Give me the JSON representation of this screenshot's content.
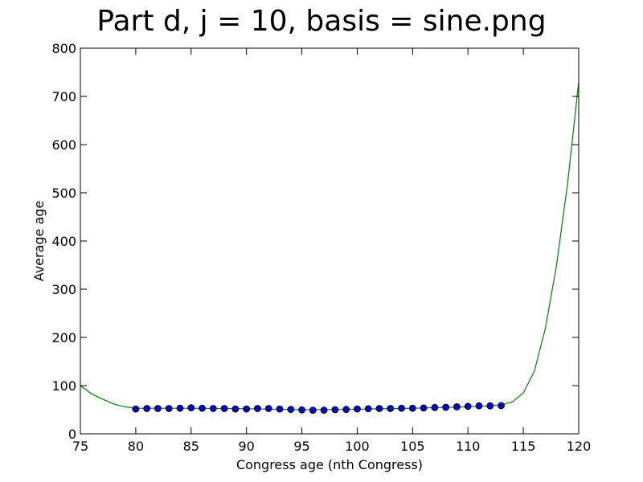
{
  "chart_data": {
    "type": "scatter",
    "title": "Part d, j = 10, basis = sine.png",
    "xlabel": "Congress age (nth Congress)",
    "ylabel": "Average age",
    "xlim": [
      75,
      120
    ],
    "ylim": [
      0,
      800
    ],
    "xticks": [
      75,
      80,
      85,
      90,
      95,
      100,
      105,
      110,
      115,
      120
    ],
    "yticks": [
      0,
      100,
      200,
      300,
      400,
      500,
      600,
      700,
      800
    ],
    "grid": false,
    "colors": {
      "points": "#0000cc",
      "fit_line": "#008000"
    },
    "series": [
      {
        "kind": "points",
        "x": [
          80,
          81,
          82,
          83,
          84,
          85,
          86,
          87,
          88,
          89,
          90,
          91,
          92,
          93,
          94,
          95,
          96,
          97,
          98,
          99,
          100,
          101,
          102,
          103,
          104,
          105,
          106,
          107,
          108,
          109,
          110,
          111,
          112,
          113
        ],
        "y": [
          51.5,
          52.5,
          52.5,
          52.5,
          53,
          54,
          53,
          52.5,
          52.5,
          51.5,
          51.5,
          52.5,
          52.5,
          51.5,
          50.5,
          49.5,
          49,
          49,
          50,
          50.5,
          51.5,
          52,
          52.5,
          52.5,
          53,
          53,
          53.5,
          54.5,
          55,
          56,
          57,
          58,
          58,
          58.5
        ]
      },
      {
        "kind": "fit",
        "x": [
          75,
          76,
          77,
          78,
          79,
          80,
          85,
          90,
          95,
          100,
          105,
          110,
          112,
          113,
          114,
          115,
          116,
          117,
          118,
          119,
          120
        ],
        "y": [
          100,
          83,
          72,
          62,
          56,
          53,
          53,
          52,
          50,
          51,
          53,
          56,
          58,
          60,
          66,
          85,
          130,
          220,
          350,
          520,
          730
        ]
      }
    ]
  }
}
